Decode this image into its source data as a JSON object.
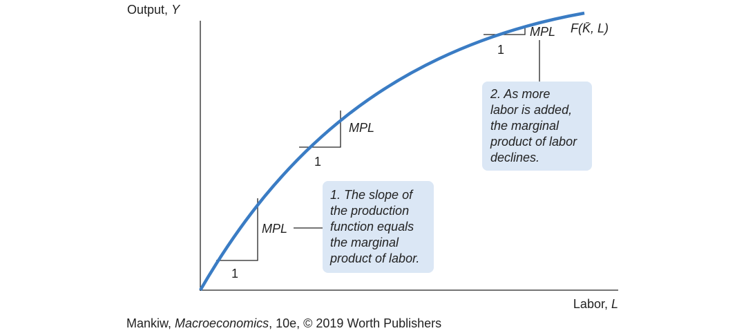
{
  "y_axis": {
    "label": "Output,",
    "variable": "Y"
  },
  "x_axis": {
    "label": "Labor,",
    "variable": "L"
  },
  "curve_label": "F(K̄, L)",
  "triangles": [
    {
      "rise": "MPL",
      "run": "1"
    },
    {
      "rise": "MPL",
      "run": "1"
    },
    {
      "rise": "MPL",
      "run": "1"
    }
  ],
  "notes": [
    {
      "lines": [
        "1. The slope of",
        "the production",
        "function equals",
        "the marginal",
        "product of labor."
      ]
    },
    {
      "lines": [
        "2. As more",
        "labor is added,",
        "the marginal",
        "product of labor",
        "declines."
      ]
    }
  ],
  "credit": {
    "author": "Mankiw,",
    "book": "Macroeconomics",
    "rest": ", 10e, © 2019 Worth Publishers"
  }
}
